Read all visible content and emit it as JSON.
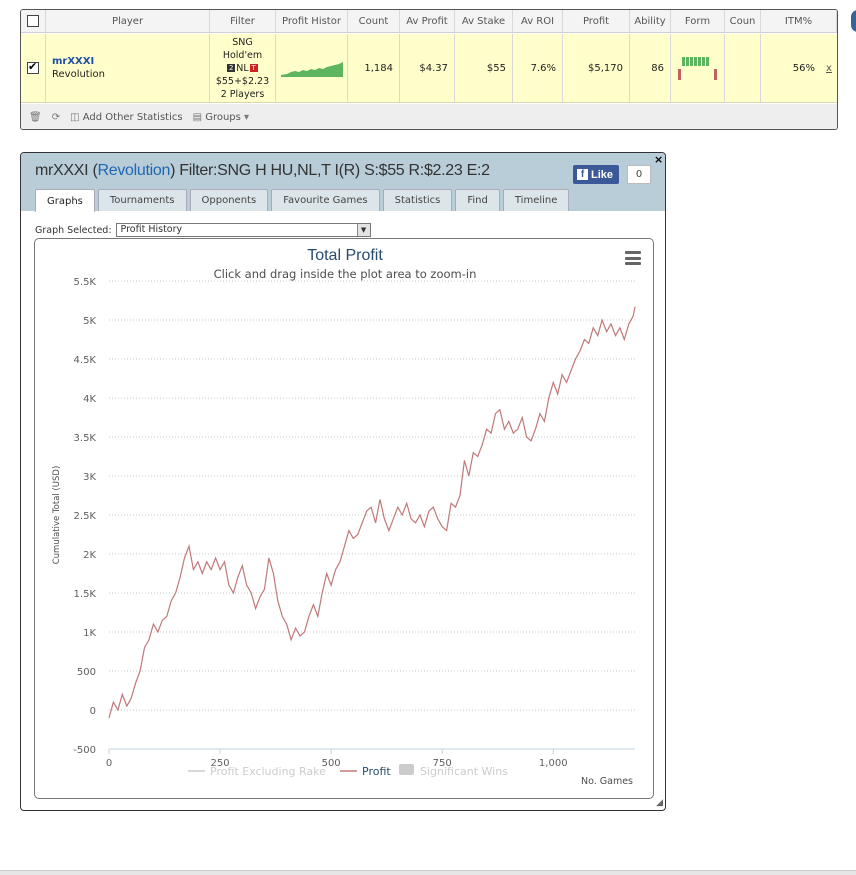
{
  "stats_table": {
    "headers": [
      "Player",
      "Filter",
      "Profit Histor",
      "Count",
      "Av Profit",
      "Av Stake",
      "Av ROI",
      "Profit",
      "Ability",
      "Form",
      "Coun",
      "ITM%"
    ],
    "row": {
      "player_name": "mrXXXI",
      "site": "Revolution",
      "filter_line1": "SNG",
      "filter_line2": "Hold'em",
      "filter_nl": "NL",
      "filter_icon_two": "2",
      "filter_icon_t": "T",
      "filter_stake": "$55+$2.23",
      "filter_players": "2 Players",
      "count": "1,184",
      "av_profit": "$4.37",
      "av_stake": "$55",
      "av_roi": "7.6%",
      "profit": "$5,170",
      "ability": "86",
      "coun": "",
      "itm": "56%",
      "remove": "x"
    },
    "footer": {
      "add_stats": "Add Other Statistics",
      "groups": "Groups"
    }
  },
  "profile": {
    "title_player": "mrXXXI (",
    "title_site": "Revolution",
    "title_rest": ") Filter:SNG H HU,NL,T I(R) S:$55 R:$2.23 E:2",
    "like_label": "Like",
    "like_count": "0",
    "close": "×",
    "tabs": [
      "Graphs",
      "Tournaments",
      "Opponents",
      "Favourite Games",
      "Statistics",
      "Find",
      "Timeline"
    ],
    "active_tab": "Graphs",
    "graph_selected_label": "Graph Selected:",
    "graph_selected_value": "Profit History"
  },
  "chart_data": {
    "type": "line",
    "title": "Total Profit",
    "subtitle": "Click and drag inside the plot area to zoom-in",
    "ylabel": "Cumulative Total (USD)",
    "xlabel": "No. Games",
    "xlim": [
      0,
      1184
    ],
    "ylim": [
      -500,
      5500
    ],
    "y_ticks": [
      "-500",
      "0",
      "500",
      "1K",
      "1.5K",
      "2K",
      "2.5K",
      "3K",
      "3.5K",
      "4K",
      "4.5K",
      "5K",
      "5.5K"
    ],
    "x_ticks": [
      "0",
      "250",
      "500",
      "750",
      "1,000"
    ],
    "grid": true,
    "legend": [
      "Profit Excluding Rake",
      "Profit",
      "Significant Wins"
    ],
    "legend_placement": "bottom",
    "series_color": "#c07878",
    "series": [
      {
        "name": "Profit",
        "x": [
          0,
          10,
          20,
          30,
          40,
          50,
          60,
          70,
          80,
          90,
          100,
          110,
          120,
          130,
          140,
          150,
          160,
          170,
          180,
          190,
          200,
          210,
          220,
          230,
          240,
          250,
          260,
          270,
          280,
          290,
          300,
          310,
          320,
          330,
          340,
          350,
          360,
          370,
          380,
          390,
          400,
          410,
          420,
          430,
          440,
          450,
          460,
          470,
          480,
          490,
          500,
          510,
          520,
          530,
          540,
          550,
          560,
          570,
          580,
          590,
          600,
          610,
          620,
          630,
          640,
          650,
          660,
          670,
          680,
          690,
          700,
          710,
          720,
          730,
          740,
          750,
          760,
          770,
          780,
          790,
          800,
          810,
          820,
          830,
          840,
          850,
          860,
          870,
          880,
          890,
          900,
          910,
          920,
          930,
          940,
          950,
          960,
          970,
          980,
          990,
          1000,
          1010,
          1020,
          1030,
          1040,
          1050,
          1060,
          1070,
          1080,
          1090,
          1100,
          1110,
          1120,
          1130,
          1140,
          1150,
          1160,
          1170,
          1180,
          1184
        ],
        "values": [
          -100,
          100,
          0,
          200,
          50,
          150,
          350,
          500,
          800,
          900,
          1100,
          1000,
          1150,
          1200,
          1400,
          1500,
          1700,
          1950,
          2100,
          1800,
          1900,
          1750,
          1900,
          1800,
          1950,
          1800,
          1900,
          1600,
          1500,
          1700,
          1850,
          1600,
          1500,
          1300,
          1450,
          1550,
          1950,
          1750,
          1400,
          1200,
          1100,
          900,
          1050,
          950,
          1000,
          1200,
          1350,
          1200,
          1500,
          1750,
          1600,
          1800,
          1900,
          2100,
          2300,
          2200,
          2250,
          2400,
          2550,
          2600,
          2400,
          2700,
          2450,
          2300,
          2450,
          2600,
          2500,
          2650,
          2450,
          2400,
          2500,
          2350,
          2550,
          2600,
          2450,
          2350,
          2300,
          2650,
          2600,
          2750,
          3200,
          3000,
          3300,
          3250,
          3400,
          3600,
          3550,
          3800,
          3850,
          3600,
          3700,
          3550,
          3600,
          3750,
          3500,
          3450,
          3600,
          3800,
          3700,
          4000,
          4200,
          4050,
          4300,
          4200,
          4350,
          4500,
          4600,
          4750,
          4700,
          4900,
          4800,
          5000,
          4850,
          4950,
          4800,
          4900,
          4750,
          4950,
          5050,
          5170
        ]
      }
    ]
  }
}
